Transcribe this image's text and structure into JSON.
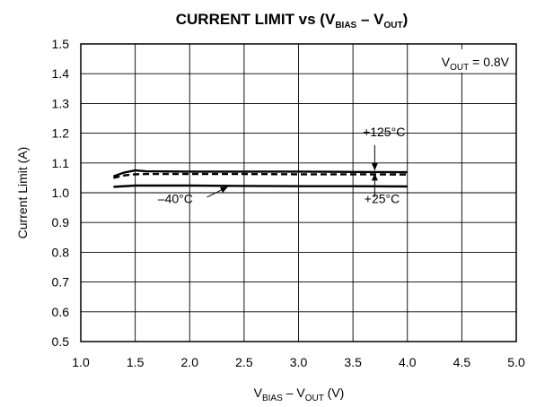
{
  "chart_data": {
    "type": "line",
    "title": {
      "main": "CURRENT LIMIT vs (V",
      "sub1": "BIAS",
      "mid": " – V",
      "sub2": "OUT",
      "end": ")"
    },
    "xlabel": {
      "v1": "V",
      "sub1": "BIAS",
      "mid": " – V",
      "sub2": "OUT",
      "end": " (V)"
    },
    "ylabel": "Current Limit (A)",
    "xlim": [
      1.0,
      5.0
    ],
    "ylim": [
      0.5,
      1.5
    ],
    "xticks": [
      "1.0",
      "1.5",
      "2.0",
      "2.5",
      "3.0",
      "3.5",
      "4.0",
      "4.5",
      "5.0"
    ],
    "yticks": [
      "0.5",
      "0.6",
      "0.7",
      "0.8",
      "0.9",
      "1.0",
      "1.1",
      "1.2",
      "1.3",
      "1.4",
      "1.5"
    ],
    "grid": true,
    "condition": {
      "v": "V",
      "sub": "OUT",
      "rest": " = 0.8V"
    },
    "series": [
      {
        "name": "+125°C",
        "style": "solid",
        "x": [
          1.3,
          1.4,
          1.5,
          1.6,
          2.0,
          2.5,
          3.0,
          3.5,
          4.0
        ],
        "y": [
          1.055,
          1.068,
          1.075,
          1.072,
          1.071,
          1.071,
          1.071,
          1.07,
          1.069
        ]
      },
      {
        "name": "+25°C",
        "style": "dashed",
        "x": [
          1.3,
          1.4,
          1.5,
          1.6,
          2.0,
          2.5,
          3.0,
          3.5,
          4.0
        ],
        "y": [
          1.05,
          1.058,
          1.062,
          1.063,
          1.063,
          1.063,
          1.062,
          1.062,
          1.061
        ]
      },
      {
        "name": "–40°C",
        "style": "solid",
        "x": [
          1.3,
          1.5,
          2.0,
          2.5,
          3.0,
          3.5,
          4.0
        ],
        "y": [
          1.02,
          1.024,
          1.024,
          1.023,
          1.022,
          1.022,
          1.021
        ]
      }
    ],
    "annotations": [
      {
        "text": "+125°C",
        "text_x": 3.98,
        "text_y": 1.19,
        "arrow_from": [
          3.7,
          1.16
        ],
        "arrow_to": [
          3.7,
          1.075
        ]
      },
      {
        "text": "+25°C",
        "text_x": 3.93,
        "text_y": 0.965,
        "arrow_from": [
          3.7,
          0.985
        ],
        "arrow_to": [
          3.7,
          1.065
        ]
      },
      {
        "text": "–40°C",
        "text_x": 2.03,
        "text_y": 0.965,
        "arrow_from": [
          2.16,
          0.985
        ],
        "arrow_to": [
          2.35,
          1.02
        ]
      }
    ]
  }
}
